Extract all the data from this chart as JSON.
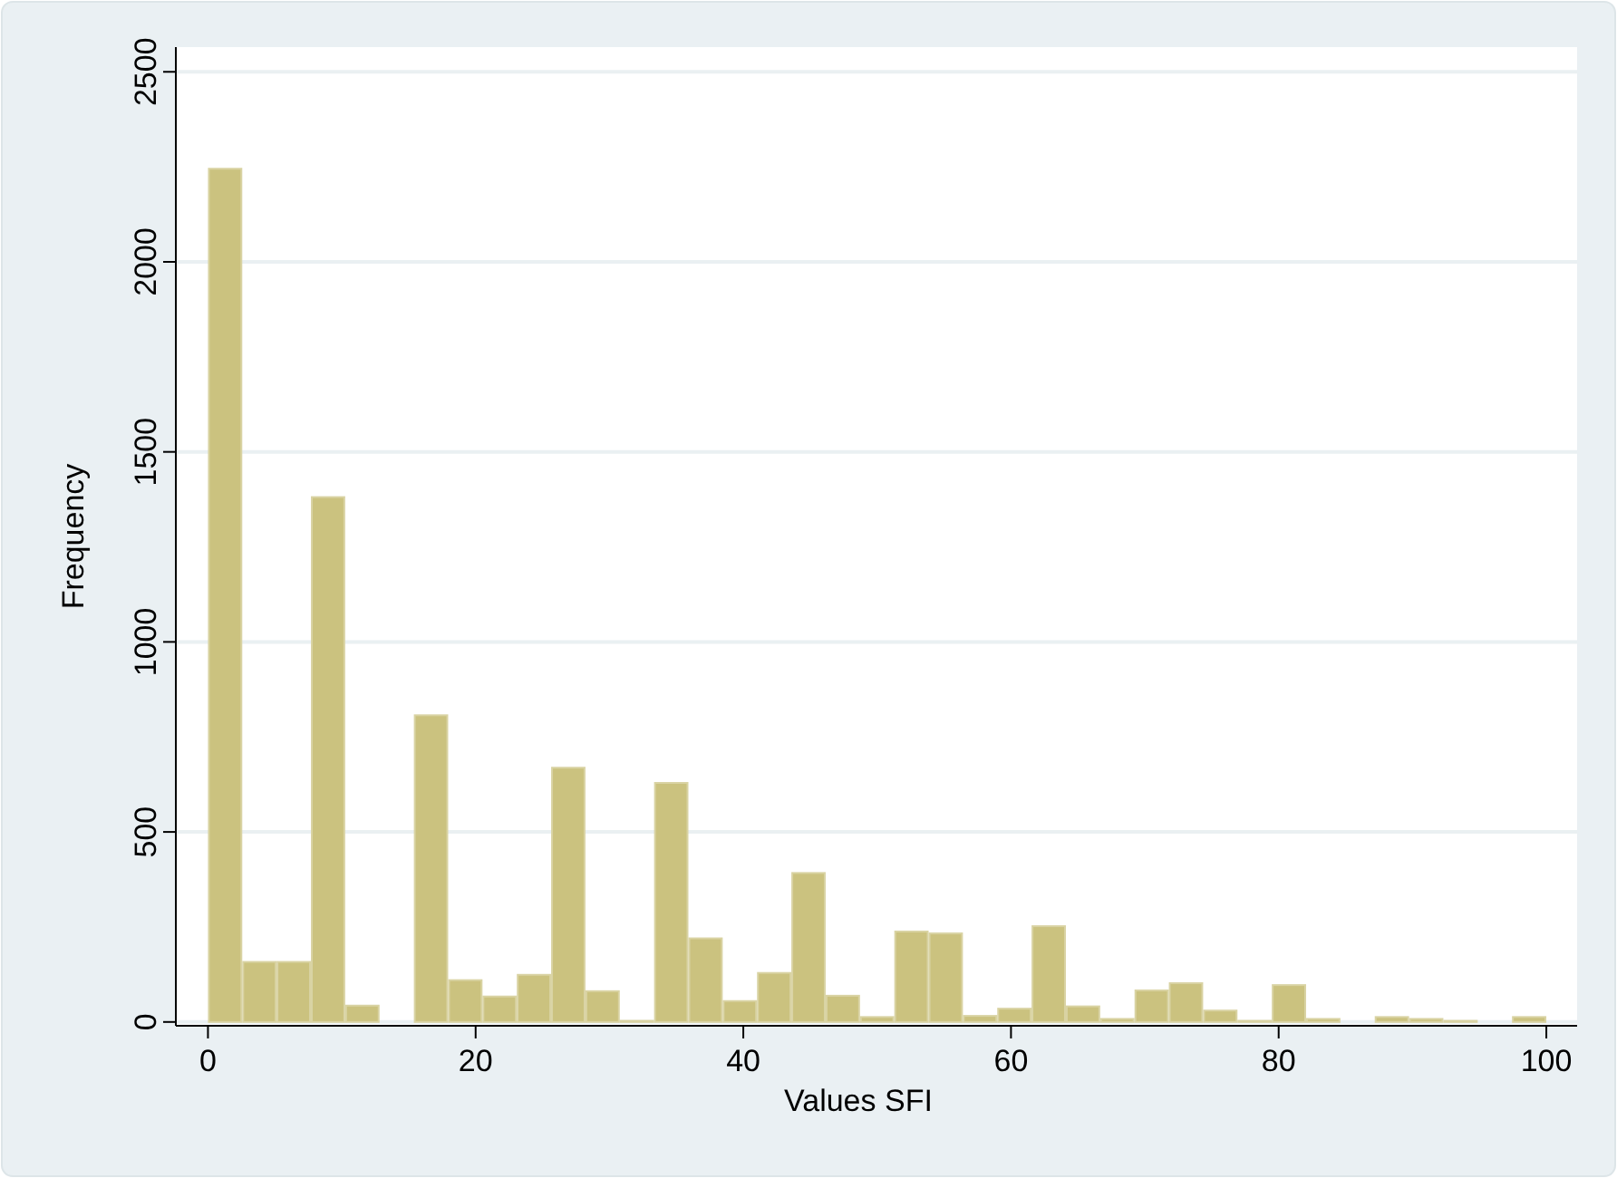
{
  "chart_data": {
    "type": "histogram",
    "xlabel": "Values SFI",
    "ylabel": "Frequency",
    "bins": [
      0,
      2.564,
      5.128,
      7.692,
      10.256,
      12.821,
      15.385,
      17.949,
      20.513,
      23.077,
      25.641,
      28.205,
      30.769,
      33.333,
      35.897,
      38.462,
      41.026,
      43.59,
      46.154,
      48.718,
      51.282,
      53.846,
      56.41,
      58.974,
      61.538,
      64.103,
      66.667,
      69.231,
      71.795,
      74.359,
      76.923,
      79.487,
      82.051,
      84.615,
      87.179,
      89.744,
      92.308,
      94.872,
      97.436,
      100
    ],
    "values": [
      2245,
      158,
      158,
      1381,
      43,
      0,
      807,
      110,
      67,
      124,
      669,
      81,
      3,
      629,
      220,
      55,
      129,
      392,
      69,
      13,
      238,
      233,
      16,
      35,
      252,
      41,
      8,
      83,
      102,
      30,
      3,
      97,
      8,
      0,
      13,
      8,
      3,
      0,
      13
    ],
    "color": "#cbc27f",
    "xlim": [
      -2.4,
      102.3
    ],
    "ylim": [
      -10,
      2565
    ],
    "xticks": [
      0,
      20,
      40,
      60,
      80,
      100
    ],
    "yticks": [
      0,
      500,
      1000,
      1500,
      2000,
      2500
    ],
    "grid": "y"
  }
}
